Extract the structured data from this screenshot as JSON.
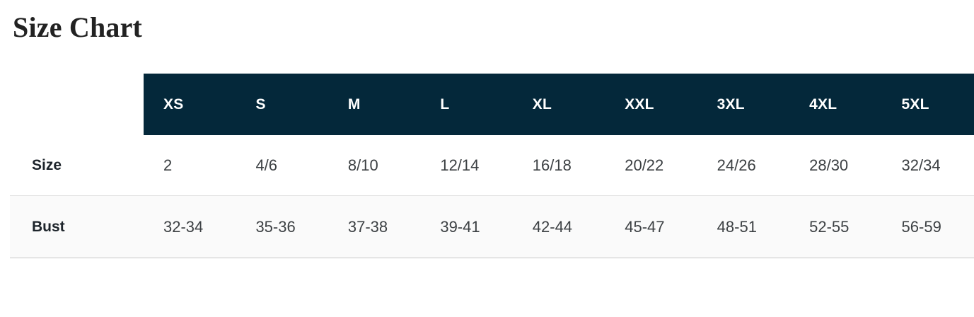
{
  "page": {
    "title": "Size Chart"
  },
  "table": {
    "columns": [
      "XS",
      "S",
      "M",
      "L",
      "XL",
      "XXL",
      "3XL",
      "4XL",
      "5XL"
    ],
    "rows": [
      {
        "label": "Size",
        "values": [
          "2",
          "4/6",
          "8/10",
          "12/14",
          "16/18",
          "20/22",
          "24/26",
          "28/30",
          "32/34"
        ]
      },
      {
        "label": "Bust",
        "values": [
          "32-34",
          "35-36",
          "37-38",
          "39-41",
          "42-44",
          "45-47",
          "48-51",
          "52-55",
          "56-59"
        ]
      }
    ]
  },
  "colors": {
    "header_bg": "#04283a",
    "header_text": "#ffffff",
    "title_text": "#222222",
    "label_text": "#1d242b",
    "value_text": "#3c4043",
    "alt_row_bg": "#fafafa",
    "border_light": "#e0e0e0",
    "border_dark": "#c6c6c6"
  }
}
